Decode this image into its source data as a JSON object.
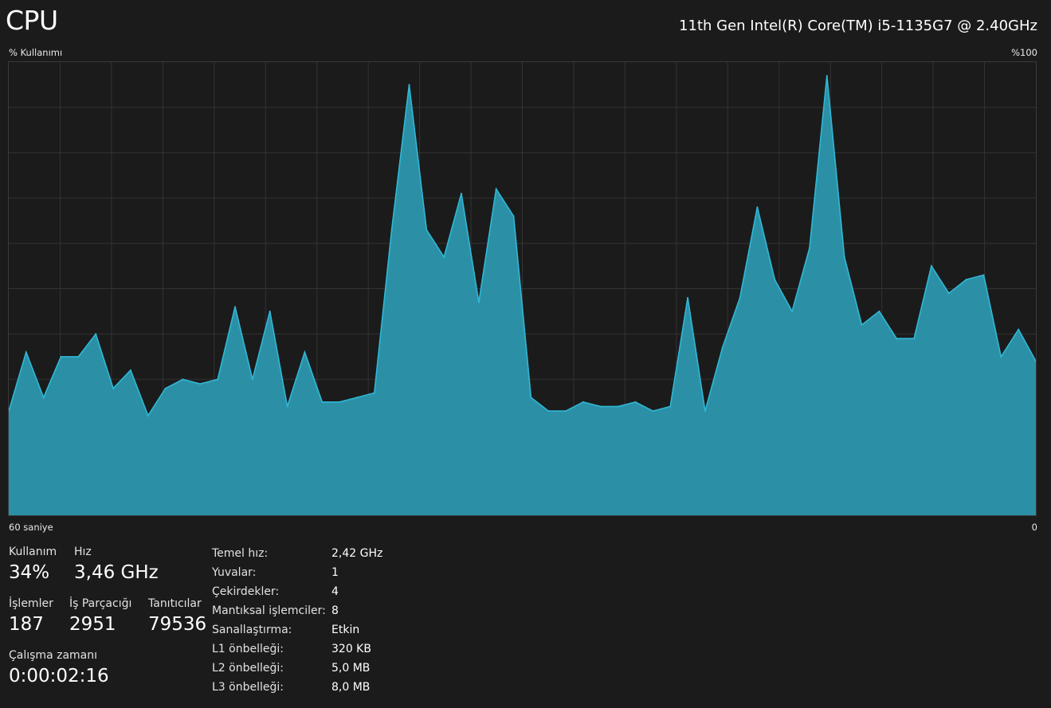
{
  "header": {
    "title": "CPU",
    "model": "11th Gen Intel(R) Core(TM) i5-1135G7 @ 2.40GHz"
  },
  "graph": {
    "y_label": "% Kullanımı",
    "y_max_label": "%100",
    "x_start_label": "60 saniye",
    "x_end_label": "0",
    "line_color": "#2fb8d6",
    "fill_color": "#2b90a6",
    "grid_color": "#333333"
  },
  "chart_data": {
    "type": "area",
    "xlim": [
      60,
      0
    ],
    "ylim": [
      0,
      100
    ],
    "grid": true,
    "values": [
      23,
      36,
      26,
      35,
      35,
      40,
      28,
      32,
      22,
      28,
      30,
      29,
      30,
      46,
      30,
      45,
      24,
      36,
      25,
      25,
      26,
      27,
      63,
      95,
      63,
      57,
      71,
      47,
      72,
      66,
      26,
      23,
      23,
      25,
      24,
      24,
      25,
      23,
      24,
      48,
      23,
      37,
      48,
      68,
      52,
      45,
      59,
      97,
      57,
      42,
      45,
      39,
      39,
      55,
      49,
      52,
      53,
      35,
      41,
      34
    ]
  },
  "stats": {
    "usage": {
      "label": "Kullanım",
      "value": "34%"
    },
    "speed": {
      "label": "Hız",
      "value": "3,46 GHz"
    },
    "processes": {
      "label": "İşlemler",
      "value": "187"
    },
    "threads": {
      "label": "İş Parçacığı",
      "value": "2951"
    },
    "handles": {
      "label": "Tanıtıcılar",
      "value": "79536"
    },
    "uptime": {
      "label": "Çalışma zamanı",
      "value": "0:00:02:16"
    }
  },
  "properties": [
    {
      "key": "Temel hız:",
      "value": "2,42 GHz"
    },
    {
      "key": "Yuvalar:",
      "value": "1"
    },
    {
      "key": "Çekirdekler:",
      "value": "4"
    },
    {
      "key": "Mantıksal işlemciler:",
      "value": "8"
    },
    {
      "key": "Sanallaştırma:",
      "value": "Etkin"
    },
    {
      "key": "L1 önbelleği:",
      "value": "320 KB"
    },
    {
      "key": "L2 önbelleği:",
      "value": "5,0 MB"
    },
    {
      "key": "L3 önbelleği:",
      "value": "8,0 MB"
    }
  ]
}
